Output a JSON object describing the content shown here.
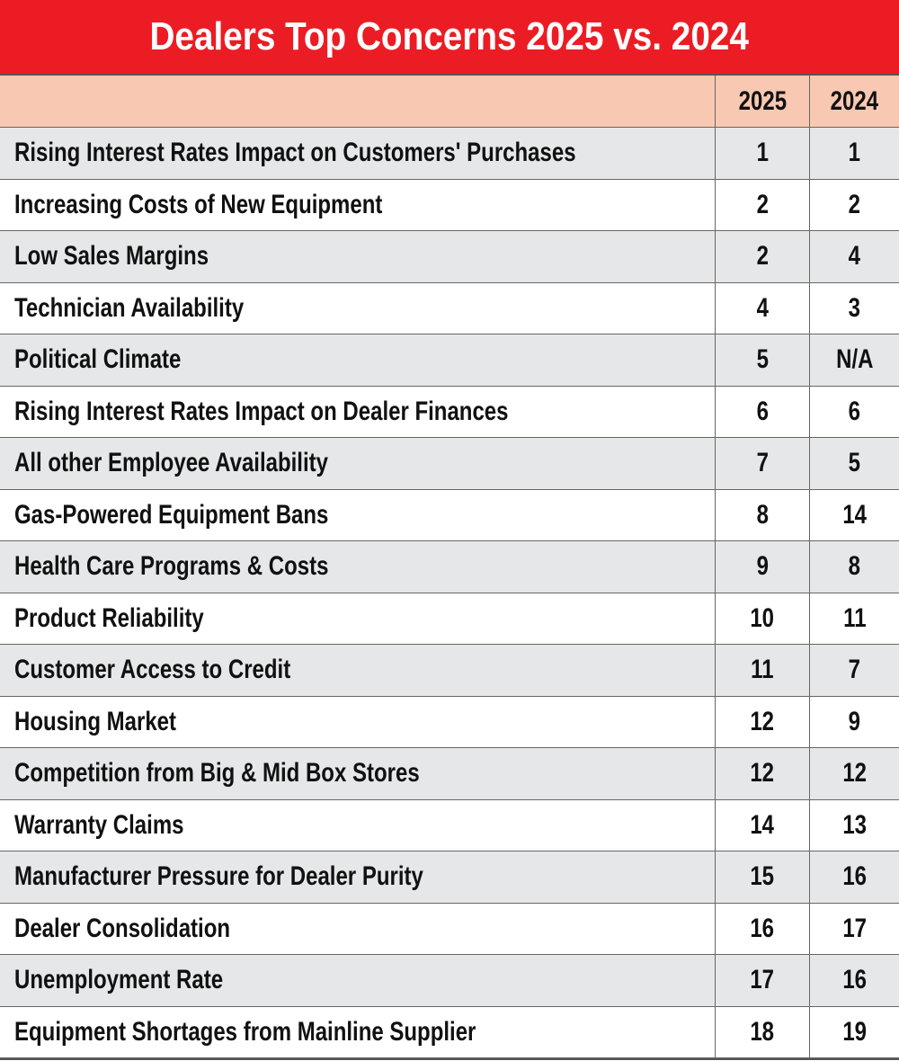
{
  "title": "Dealers Top Concerns 2025 vs. 2024",
  "table": {
    "columns": [
      "2025",
      "2024"
    ],
    "rows": [
      [
        "Rising Interest Rates Impact on Customers' Purchases",
        1,
        1
      ],
      [
        "Increasing Costs of New Equipment",
        2,
        2
      ],
      [
        "Low Sales Margins",
        2,
        4
      ],
      [
        "Technician Availability",
        4,
        3
      ],
      [
        "Political Climate",
        5,
        "N/A"
      ],
      [
        "Rising Interest Rates Impact on Dealer Finances",
        6,
        6
      ],
      [
        "All other Employee Availability",
        7,
        5
      ],
      [
        "Gas-Powered Equipment Bans",
        8,
        14
      ],
      [
        "Health Care Programs & Costs",
        9,
        8
      ],
      [
        "Product Reliability",
        10,
        11
      ],
      [
        "Customer Access to Credit",
        11,
        7
      ],
      [
        "Housing Market",
        12,
        9
      ],
      [
        "Competition from Big & Mid Box Stores",
        12,
        12
      ],
      [
        "Warranty Claims",
        14,
        13
      ],
      [
        "Manufacturer Pressure for Dealer Purity",
        15,
        16
      ],
      [
        "Dealer Consolidation",
        16,
        17
      ],
      [
        "Unemployment Rate",
        17,
        16
      ],
      [
        "Equipment Shortages from Mainline Supplier",
        18,
        19
      ]
    ]
  }
}
